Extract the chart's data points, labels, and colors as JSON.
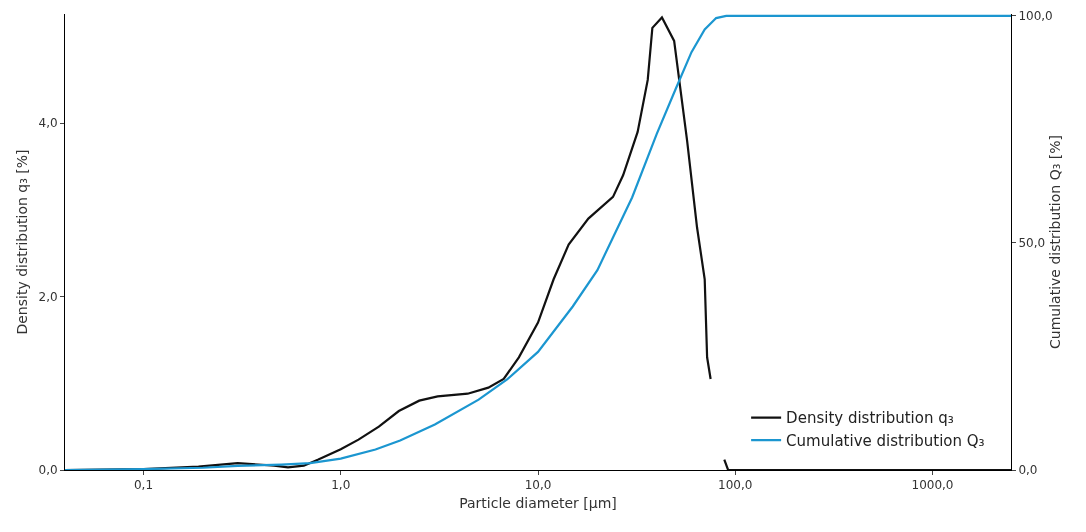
{
  "chart_data": {
    "type": "line",
    "xlabel": "Particle diameter [µm]",
    "ylabel": "Density distribution q₃ [%]",
    "y2label": "Cumulative distribution Q₃ [%]",
    "log": "x",
    "grid": false,
    "legend": "bottom right",
    "marker": "none",
    "line_style": "solid",
    "xlim": [
      0.04,
      2500
    ],
    "xticks": [
      {
        "value": 0.1,
        "label": "0,1"
      },
      {
        "value": 1,
        "label": "1,0"
      },
      {
        "value": 10,
        "label": "10,0"
      },
      {
        "value": 100,
        "label": "100,0"
      },
      {
        "value": 1000,
        "label": "1000,0"
      }
    ],
    "ylim": [
      0,
      5.26
    ],
    "yticks": [
      {
        "value": 0,
        "label": "0,0"
      },
      {
        "value": 2,
        "label": "2,0"
      },
      {
        "value": 4,
        "label": "4,0"
      }
    ],
    "y2lim": [
      0,
      100.4
    ],
    "y2ticks": [
      {
        "value": 0,
        "label": "0,0"
      },
      {
        "value": 50,
        "label": "50,0"
      },
      {
        "value": 100,
        "label": "100,0"
      }
    ],
    "series": [
      {
        "name": "Density distribution q₃",
        "color": "#111111",
        "x": [
          0.04,
          0.1,
          0.19,
          0.3,
          0.46,
          0.54,
          0.65,
          0.77,
          1.0,
          1.23,
          1.56,
          1.97,
          2.5,
          3.1,
          4.4,
          5.6,
          6.7,
          8.0,
          10,
          12,
          14.3,
          18,
          24,
          27,
          32,
          36,
          38,
          42.5,
          49,
          57,
          64,
          70,
          72,
          75,
          80,
          88,
          92,
          2500
        ],
        "values": [
          0,
          0.01,
          0.04,
          0.08,
          0.05,
          0.03,
          0.05,
          0.12,
          0.24,
          0.35,
          0.5,
          0.68,
          0.8,
          0.85,
          0.88,
          0.95,
          1.05,
          1.3,
          1.7,
          2.2,
          2.6,
          2.9,
          3.15,
          3.4,
          3.9,
          4.5,
          5.1,
          5.22,
          4.95,
          3.8,
          2.8,
          2.2,
          1.3,
          1.05,
          null,
          0.12,
          0,
          0
        ]
      },
      {
        "name": "Cumulative distribution Q₃",
        "color": "#1b96d0",
        "axis": "y2",
        "x": [
          0.04,
          0.1,
          0.2,
          0.3,
          0.5,
          0.7,
          1,
          1.5,
          2,
          3,
          5,
          7,
          10,
          15,
          20,
          30,
          40,
          50,
          60,
          70,
          80,
          90,
          2500
        ],
        "values": [
          0,
          0.2,
          0.5,
          0.9,
          1.2,
          1.5,
          2.5,
          4.5,
          6.5,
          10,
          15.5,
          20,
          26,
          36,
          44,
          60,
          74,
          84,
          92,
          97,
          99.5,
          100,
          100
        ]
      }
    ]
  }
}
